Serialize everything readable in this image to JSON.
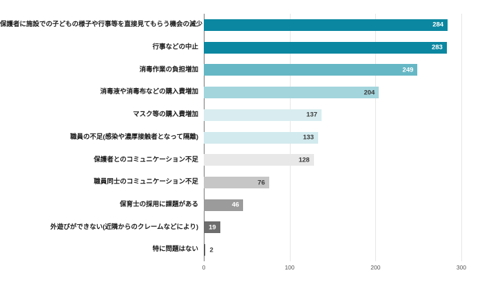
{
  "chart_data": {
    "type": "bar",
    "orientation": "horizontal",
    "title": "",
    "xlabel": "",
    "ylabel": "",
    "xlim": [
      0,
      300
    ],
    "ticks": [
      0,
      100,
      200,
      300
    ],
    "grid": true,
    "legend": "none",
    "categories": [
      "保護者に施設での子どもの様子や行事等を直接見てもらう機会の減少",
      "行事などの中止",
      "消毒作業の負担増加",
      "消毒液や消毒布などの購入費増加",
      "マスク等の購入費増加",
      "職員の不足(感染や濃厚接触者となって隔離)",
      "保護者とのコミュニケーション不足",
      "職員同士のコミュニケーション不足",
      "保育士の採用に課題がある",
      "外遊びができない(近隣からのクレームなどにより)",
      "特に問題はない"
    ],
    "values": [
      284,
      283,
      249,
      204,
      137,
      133,
      128,
      76,
      46,
      19,
      2
    ],
    "bars": [
      {
        "label": "保護者に施設での子どもの様子や行事等を直接見てもらう機会の減少",
        "value": 284,
        "color": "#0b87a1",
        "text_color": "#ffffff",
        "inside": true
      },
      {
        "label": "行事などの中止",
        "value": 283,
        "color": "#0b87a1",
        "text_color": "#ffffff",
        "inside": true
      },
      {
        "label": "消毒作業の負担増加",
        "value": 249,
        "color": "#66b7c5",
        "text_color": "#ffffff",
        "inside": true
      },
      {
        "label": "消毒液や消毒布などの購入費増加",
        "value": 204,
        "color": "#a3d5dd",
        "text_color": "#3a3a3a",
        "inside": true
      },
      {
        "label": "マスク等の購入費増加",
        "value": 137,
        "color": "#d9edf0",
        "text_color": "#3a3a3a",
        "inside": true
      },
      {
        "label": "職員の不足(感染や濃厚接触者となって隔離)",
        "value": 133,
        "color": "#d2eaee",
        "text_color": "#3a3a3a",
        "inside": true
      },
      {
        "label": "保護者とのコミュニケーション不足",
        "value": 128,
        "color": "#e8e8e8",
        "text_color": "#3a3a3a",
        "inside": true
      },
      {
        "label": "職員同士のコミュニケーション不足",
        "value": 76,
        "color": "#c6c6c6",
        "text_color": "#3a3a3a",
        "inside": true
      },
      {
        "label": "保育士の採用に課題がある",
        "value": 46,
        "color": "#9b9b9b",
        "text_color": "#ffffff",
        "inside": true
      },
      {
        "label": "外遊びができない(近隣からのクレームなどにより)",
        "value": 19,
        "color": "#6d6d6d",
        "text_color": "#ffffff",
        "inside": true
      },
      {
        "label": "特に問題はない",
        "value": 2,
        "color": "#5a5a5a",
        "text_color": "#3a3a3a",
        "inside": false
      }
    ]
  }
}
